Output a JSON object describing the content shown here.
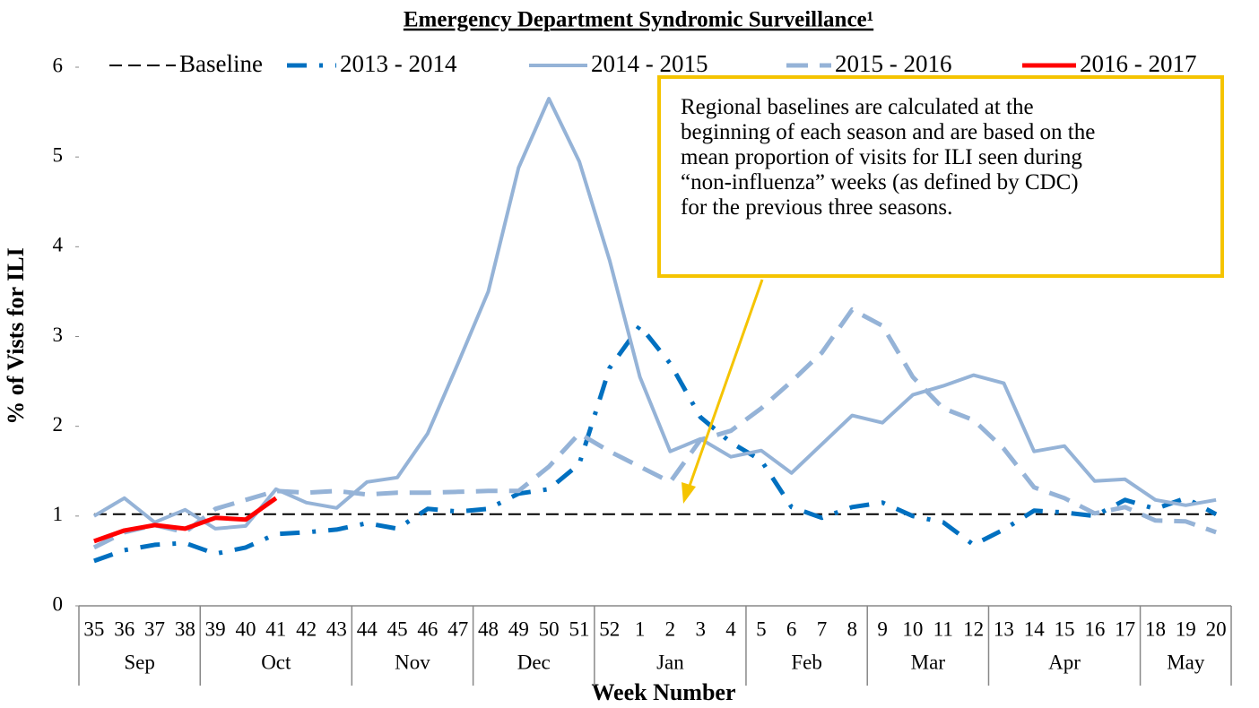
{
  "chart_data": {
    "type": "line",
    "title": "Emergency Department Syndromic Surveillance¹",
    "x_label": "Week Number",
    "y_label": "% of Vists for ILI",
    "groups": [
      {
        "label": "Sep",
        "categories": [
          "35",
          "36",
          "37",
          "38"
        ]
      },
      {
        "label": "Oct",
        "categories": [
          "39",
          "40",
          "41",
          "42",
          "43"
        ]
      },
      {
        "label": "Nov",
        "categories": [
          "44",
          "45",
          "46",
          "47"
        ]
      },
      {
        "label": "Dec",
        "categories": [
          "48",
          "49",
          "50",
          "51"
        ]
      },
      {
        "label": "Jan",
        "categories": [
          "52",
          "1",
          "2",
          "3",
          "4"
        ]
      },
      {
        "label": "Feb",
        "categories": [
          "5",
          "6",
          "7",
          "8"
        ]
      },
      {
        "label": "Mar",
        "categories": [
          "9",
          "10",
          "11",
          "12"
        ]
      },
      {
        "label": "Apr",
        "categories": [
          "13",
          "14",
          "15",
          "16",
          "17"
        ]
      },
      {
        "label": "May",
        "categories": [
          "18",
          "19",
          "20"
        ]
      }
    ],
    "ylim": [
      0,
      6
    ],
    "yticks": [
      0,
      1,
      2,
      3,
      4,
      5,
      6
    ],
    "series": [
      {
        "name": "Baseline",
        "color": "#000000",
        "values": [
          1.02,
          1.02,
          1.02,
          1.02,
          1.02,
          1.02,
          1.02,
          1.02,
          1.02,
          1.02,
          1.02,
          1.02,
          1.02,
          1.02,
          1.02,
          1.02,
          1.02,
          1.02,
          1.02,
          1.02,
          1.02,
          1.02,
          1.02,
          1.02,
          1.02,
          1.02,
          1.02,
          1.02,
          1.02,
          1.02,
          1.02,
          1.02,
          1.02,
          1.02,
          1.02,
          1.02,
          1.02,
          1.02
        ]
      },
      {
        "name": "2013 - 2014",
        "color": "#0070c0",
        "values": [
          0.5,
          0.62,
          0.68,
          0.7,
          0.58,
          0.65,
          0.8,
          0.82,
          0.85,
          0.92,
          0.86,
          1.08,
          1.05,
          1.08,
          1.25,
          1.3,
          1.58,
          2.65,
          3.12,
          2.7,
          2.1,
          1.82,
          1.62,
          1.1,
          0.98,
          1.1,
          1.15,
          1.0,
          0.93,
          0.68,
          0.85,
          1.06,
          1.04,
          1.0,
          1.18,
          1.08,
          1.2,
          1.02
        ]
      },
      {
        "name": "2014 - 2015",
        "color": "#95b3d7",
        "values": [
          1.0,
          1.2,
          0.93,
          1.07,
          0.86,
          0.89,
          1.3,
          1.15,
          1.09,
          1.38,
          1.43,
          1.92,
          2.7,
          3.5,
          4.88,
          5.65,
          4.95,
          3.85,
          2.55,
          1.72,
          1.86,
          1.66,
          1.73,
          1.48,
          1.8,
          2.12,
          2.04,
          2.35,
          2.45,
          2.57,
          2.48,
          1.72,
          1.78,
          1.39,
          1.41,
          1.18,
          1.12,
          1.18
        ]
      },
      {
        "name": "2015 - 2016",
        "color": "#95b3d7",
        "values": [
          0.65,
          0.82,
          0.9,
          0.82,
          1.08,
          1.18,
          1.28,
          1.26,
          1.28,
          1.24,
          1.26,
          1.26,
          1.27,
          1.28,
          1.28,
          1.55,
          1.92,
          1.72,
          1.55,
          1.38,
          1.85,
          1.95,
          2.2,
          2.5,
          2.82,
          3.3,
          3.12,
          2.55,
          2.2,
          2.07,
          1.75,
          1.32,
          1.2,
          1.03,
          1.1,
          0.95,
          0.94,
          0.82
        ]
      },
      {
        "name": "2016 - 2017",
        "color": "#ff0000",
        "values": [
          0.72,
          0.84,
          0.9,
          0.86,
          0.98,
          0.96,
          1.2,
          null,
          null,
          null,
          null,
          null,
          null,
          null,
          null,
          null,
          null,
          null,
          null,
          null,
          null,
          null,
          null,
          null,
          null,
          null,
          null,
          null,
          null,
          null,
          null,
          null,
          null,
          null,
          null,
          null,
          null,
          null
        ]
      }
    ],
    "annotation": [
      "Regional baselines are calculated at the",
      "beginning of each season and are based on the",
      "mean proportion of visits for ILI seen during",
      "“non-influenza” weeks (as defined by CDC)",
      "for the previous three seasons."
    ]
  }
}
